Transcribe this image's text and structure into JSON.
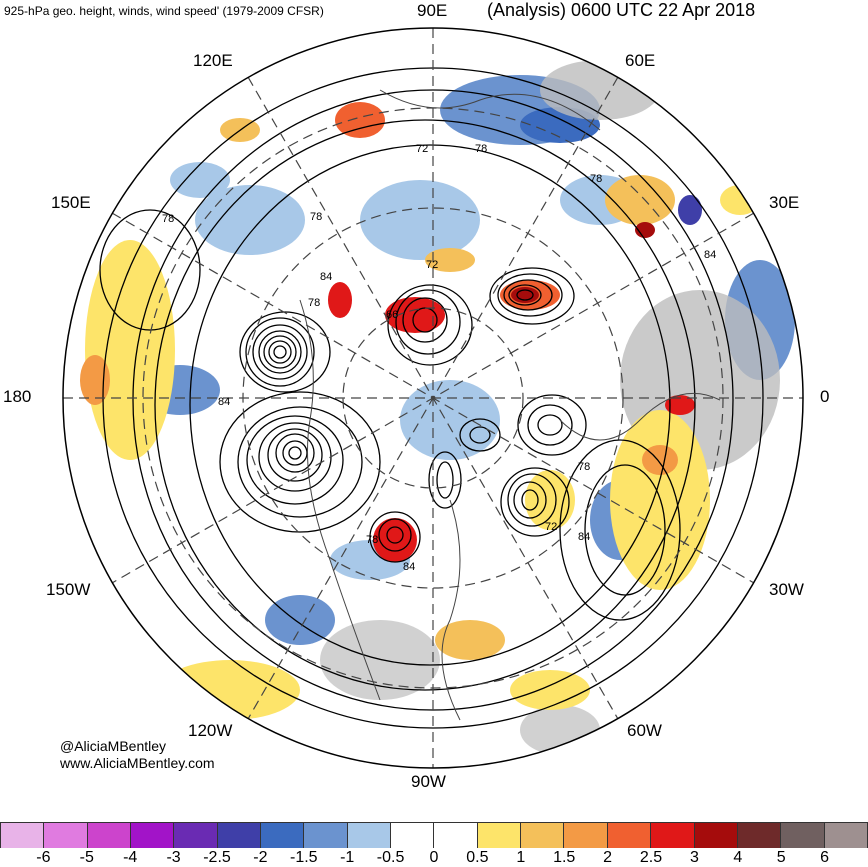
{
  "header": {
    "left_title": "925-hPa geo. height, winds, wind speed' (1979-2009 CFSR)",
    "right_title": "(Analysis) 0600 UTC 22 Apr 2018"
  },
  "longitude_labels": {
    "e90": "90E",
    "e60": "60E",
    "e30": "30E",
    "zero": "0",
    "w30": "30W",
    "w60": "60W",
    "w90": "90W",
    "w120": "120W",
    "w150": "150W",
    "d180": "180",
    "e150": "150E",
    "e120": "120E"
  },
  "contour_labels": [
    "72",
    "78",
    "78",
    "78",
    "84",
    "78",
    "72",
    "66",
    "84",
    "78",
    "84",
    "78",
    "84",
    "72",
    "78",
    "84"
  ],
  "credits": {
    "handle": "@AliciaMBentley",
    "website": "www.AliciaMBentley.com"
  },
  "colorbar": {
    "colors": [
      "#e8b3e8",
      "#e07be0",
      "#cc44cc",
      "#a214c8",
      "#6a2bb3",
      "#3f3fa8",
      "#3b6bbf",
      "#6b93cf",
      "#a8c8e8",
      "#ffffff",
      "#ffffff",
      "#fde46a",
      "#f4c05a",
      "#f39a45",
      "#f06030",
      "#e01818",
      "#a50c0c",
      "#6e2a2a",
      "#706060",
      "#9e9090"
    ],
    "ticks": [
      "-6",
      "-5",
      "-4",
      "-3",
      "-2.5",
      "-2",
      "-1.5",
      "-1",
      "-0.5",
      "0",
      "0.5",
      "1",
      "1.5",
      "2",
      "2.5",
      "3",
      "4",
      "5",
      "6"
    ]
  }
}
